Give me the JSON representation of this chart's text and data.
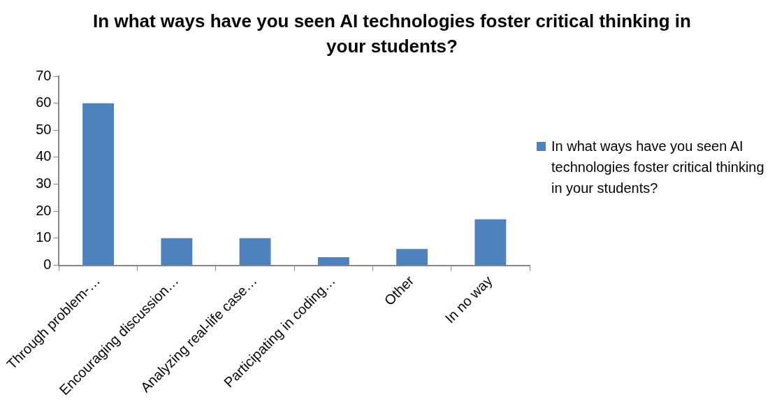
{
  "chart_data": {
    "type": "bar",
    "title": "In what ways have you seen AI technologies foster critical thinking in your students?",
    "categories": [
      "Through problem-…",
      "Encouraging discussion…",
      "Analyzing real-life case…",
      "Participating in coding…",
      "Other",
      "In no way"
    ],
    "series": [
      {
        "name": "In what ways have you seen AI technologies foster critical thinking in your students?",
        "color": "#4f81bd",
        "values": [
          60,
          10,
          10,
          3,
          6,
          17
        ]
      }
    ],
    "ylim": [
      0,
      70
    ],
    "yticks": [
      0,
      10,
      20,
      30,
      40,
      50,
      60,
      70
    ],
    "legend": "right"
  }
}
